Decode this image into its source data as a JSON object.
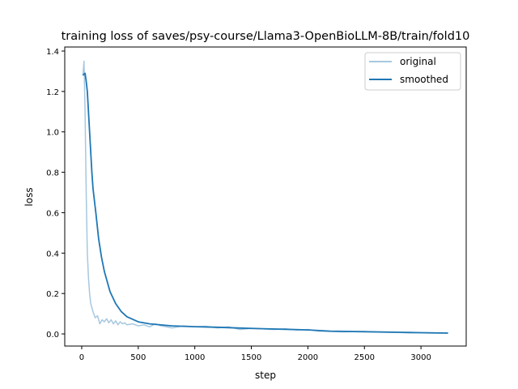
{
  "chart_data": {
    "type": "line",
    "title": "training loss of saves/psy-course/Llama3-OpenBioLLM-8B/train/fold10",
    "xlabel": "step",
    "ylabel": "loss",
    "xlim": [
      -150,
      3400
    ],
    "ylim": [
      -0.06,
      1.42
    ],
    "xticks": [
      0,
      500,
      1000,
      1500,
      2000,
      2500,
      3000
    ],
    "xtick_labels": [
      "0",
      "500",
      "1000",
      "1500",
      "2000",
      "2500",
      "3000"
    ],
    "yticks": [
      0.0,
      0.2,
      0.4,
      0.6,
      0.8,
      1.0,
      1.2,
      1.4
    ],
    "ytick_labels": [
      "0.0",
      "0.2",
      "0.4",
      "0.6",
      "0.8",
      "1.0",
      "1.2",
      "1.4"
    ],
    "legend_position": "top-right",
    "series": [
      {
        "name": "original",
        "color": "#a6c8e0",
        "x": [
          10,
          20,
          30,
          40,
          50,
          60,
          70,
          80,
          100,
          120,
          140,
          160,
          180,
          200,
          220,
          240,
          260,
          280,
          300,
          320,
          340,
          360,
          380,
          400,
          450,
          500,
          550,
          600,
          650,
          700,
          750,
          800,
          900,
          1000,
          1100,
          1200,
          1300,
          1400,
          1500,
          1600,
          1700,
          1800,
          1900,
          2000,
          2100,
          2200,
          2300,
          2400,
          2500,
          2600,
          2700,
          2800,
          2900,
          3000,
          3100,
          3200,
          3240
        ],
        "y": [
          1.28,
          1.35,
          1.1,
          0.7,
          0.4,
          0.28,
          0.2,
          0.15,
          0.11,
          0.08,
          0.09,
          0.05,
          0.07,
          0.06,
          0.075,
          0.055,
          0.07,
          0.05,
          0.065,
          0.045,
          0.06,
          0.05,
          0.055,
          0.045,
          0.05,
          0.04,
          0.045,
          0.035,
          0.05,
          0.04,
          0.035,
          0.03,
          0.04,
          0.035,
          0.038,
          0.03,
          0.035,
          0.022,
          0.028,
          0.025,
          0.022,
          0.025,
          0.02,
          0.022,
          0.013,
          0.012,
          0.01,
          0.011,
          0.012,
          0.009,
          0.008,
          0.007,
          0.005,
          0.005,
          0.004,
          0.004,
          0.004
        ]
      },
      {
        "name": "smoothed",
        "color": "#1f77b4",
        "x": [
          10,
          30,
          40,
          50,
          60,
          70,
          80,
          90,
          100,
          125,
          150,
          175,
          200,
          250,
          300,
          350,
          400,
          500,
          600,
          800,
          1000,
          1200,
          1400,
          1600,
          1800,
          2000,
          2200,
          2500,
          2800,
          3000,
          3240
        ],
        "y": [
          1.28,
          1.29,
          1.25,
          1.2,
          1.1,
          1.0,
          0.9,
          0.8,
          0.72,
          0.6,
          0.47,
          0.38,
          0.31,
          0.21,
          0.15,
          0.11,
          0.085,
          0.06,
          0.05,
          0.04,
          0.036,
          0.033,
          0.029,
          0.026,
          0.023,
          0.02,
          0.014,
          0.011,
          0.008,
          0.006,
          0.004
        ]
      }
    ]
  }
}
